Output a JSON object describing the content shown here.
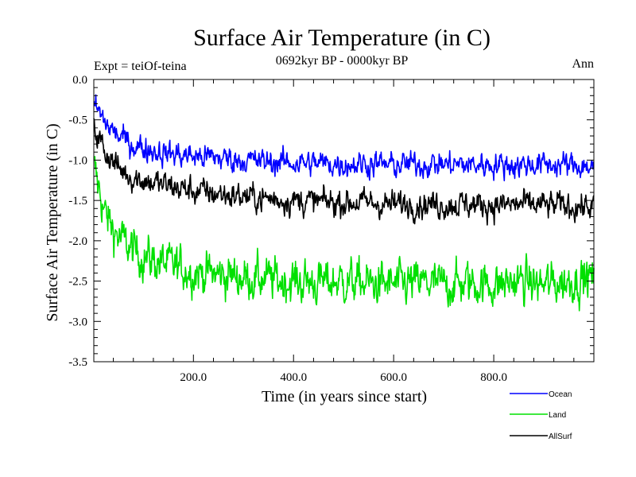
{
  "chart_data": {
    "type": "line",
    "title": "Surface Air Temperature (in C)",
    "subtitle": "0692kyr BP - 0000kyr BP",
    "left_label": "Expt = teiOf-teina",
    "right_label": "Ann",
    "xlabel": "Time (in years since start)",
    "ylabel": "Surface Air Temperature (in C)",
    "xlim": [
      1,
      1000
    ],
    "ylim": [
      -3.5,
      0.0
    ],
    "x_tick_values": [
      200,
      400,
      600,
      800
    ],
    "x_tick_labels": [
      "200.0",
      "400.0",
      "600.0",
      "800.0"
    ],
    "y_tick_values": [
      0.0,
      -0.5,
      -1.0,
      -1.5,
      -2.0,
      -2.5,
      -3.0,
      -3.5
    ],
    "y_tick_labels": [
      "0.0",
      "-0.5",
      "-1.0",
      "-1.5",
      "-2.0",
      "-2.5",
      "-3.0",
      "-3.5"
    ],
    "legend_position": "bottom-right, below plot",
    "series": [
      {
        "name": "Ocean",
        "color": "#0000ff",
        "x": [
          1,
          25,
          50,
          75,
          100,
          150,
          200,
          250,
          300,
          350,
          400,
          450,
          500,
          550,
          600,
          650,
          700,
          750,
          800,
          850,
          900,
          950,
          1000
        ],
        "values": [
          -0.3,
          -0.55,
          -0.7,
          -0.8,
          -0.85,
          -0.92,
          -0.95,
          -0.97,
          -1.0,
          -1.02,
          -1.03,
          -1.04,
          -1.05,
          -1.04,
          -1.06,
          -1.05,
          -1.05,
          -1.06,
          -1.05,
          -1.06,
          -1.05,
          -1.06,
          -1.08
        ]
      },
      {
        "name": "Land",
        "color": "#00e000",
        "x": [
          1,
          25,
          50,
          75,
          100,
          150,
          200,
          250,
          300,
          350,
          400,
          450,
          500,
          550,
          600,
          650,
          700,
          750,
          800,
          850,
          900,
          950,
          1000
        ],
        "values": [
          -1.1,
          -1.7,
          -1.95,
          -2.1,
          -2.2,
          -2.3,
          -2.38,
          -2.42,
          -2.45,
          -2.48,
          -2.5,
          -2.52,
          -2.5,
          -2.53,
          -2.55,
          -2.52,
          -2.55,
          -2.52,
          -2.55,
          -2.5,
          -2.55,
          -2.5,
          -2.45
        ]
      },
      {
        "name": "AllSurf",
        "color": "#000000",
        "x": [
          1,
          25,
          50,
          75,
          100,
          150,
          200,
          250,
          300,
          350,
          400,
          450,
          500,
          550,
          600,
          650,
          700,
          750,
          800,
          850,
          900,
          950,
          1000
        ],
        "values": [
          -0.6,
          -0.9,
          -1.1,
          -1.2,
          -1.25,
          -1.32,
          -1.38,
          -1.42,
          -1.45,
          -1.48,
          -1.5,
          -1.52,
          -1.52,
          -1.53,
          -1.55,
          -1.54,
          -1.55,
          -1.55,
          -1.56,
          -1.55,
          -1.56,
          -1.57,
          -1.58
        ]
      }
    ],
    "series_noise_amplitude": [
      0.13,
      0.22,
      0.14
    ],
    "data_points_per_series": 1000
  }
}
